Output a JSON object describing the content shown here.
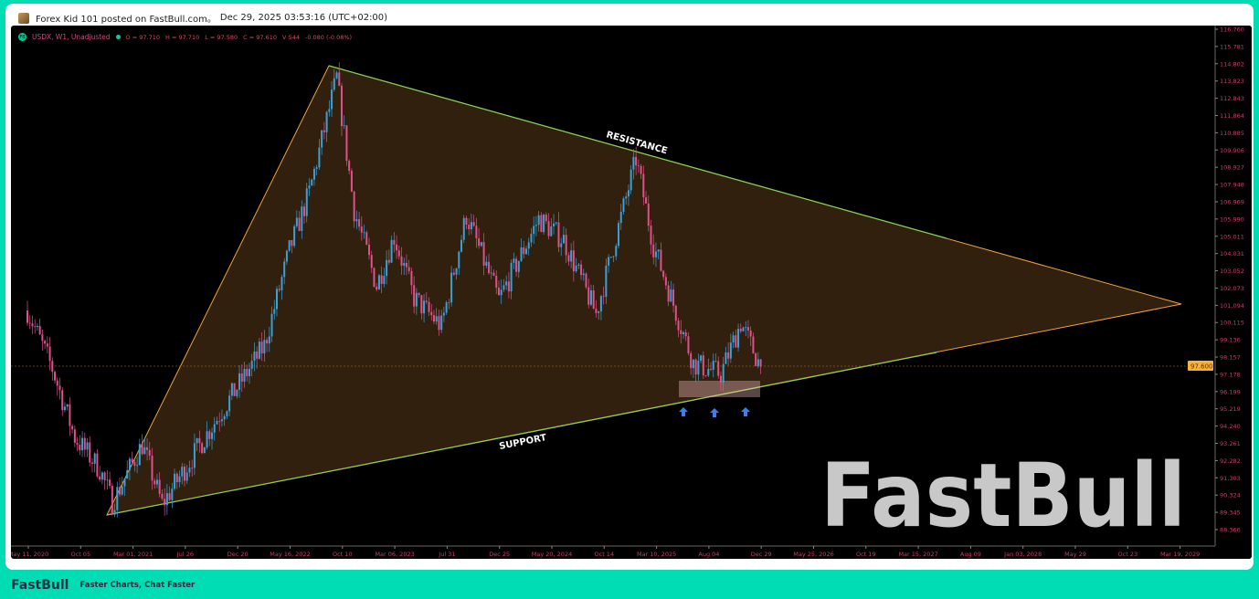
{
  "header": {
    "author_line": "Forex Kid 101 posted on FastBull.com。",
    "timestamp": "Dec 29, 2025 03:53:16 (UTC+02:00)"
  },
  "legend": {
    "badge": "FB",
    "symbol": "USDX, W1, Unadjusted",
    "open": "O = 97.710",
    "high": "H = 97.710",
    "low": "L = 97.580",
    "close": "C = 97.610",
    "volume": "V 544",
    "change": "-0.080 (-0.08%)"
  },
  "chart_data": {
    "type": "candlestick",
    "y_ticks": [
      "116.760",
      "115.781",
      "114.802",
      "113.823",
      "112.843",
      "111.864",
      "110.885",
      "109.906",
      "108.927",
      "107.948",
      "106.969",
      "105.990",
      "105.011",
      "104.031",
      "103.052",
      "102.073",
      "101.094",
      "100.115",
      "99.136",
      "98.157",
      "97.178",
      "96.199",
      "95.219",
      "94.240",
      "93.261",
      "92.282",
      "91.303",
      "90.324",
      "89.345",
      "88.366"
    ],
    "ylim": [
      88.366,
      116.76
    ],
    "x_ticks": [
      "May 11, 2020",
      "Oct 05",
      "Mar 01, 2021",
      "Jul 26",
      "Dec 20",
      "May 16, 2022",
      "Oct 10",
      "Mar 06, 2023",
      "Jul 31",
      "Dec 25",
      "May 20, 2024",
      "Oct 14",
      "Mar 10, 2025",
      "Aug 04",
      "Dec 29",
      "May 25, 2026",
      "Oct 19",
      "Mar 15, 2027",
      "Aug 09",
      "Jan 03, 2028",
      "May 29",
      "Oct 23",
      "Mar 19, 2029"
    ],
    "last_price": "97.600",
    "price_path": [
      [
        "2020-05-11",
        100.8
      ],
      [
        "2020-07-20",
        97.5
      ],
      [
        "2020-09-21",
        93.6
      ],
      [
        "2020-11-30",
        91.8
      ],
      [
        "2021-01-04",
        89.9
      ],
      [
        "2021-03-29",
        93.2
      ],
      [
        "2021-05-24",
        89.8
      ],
      [
        "2021-09-27",
        93.8
      ],
      [
        "2021-12-13",
        96.2
      ],
      [
        "2022-03-07",
        98.8
      ],
      [
        "2022-05-16",
        104.2
      ],
      [
        "2022-07-11",
        107.5
      ],
      [
        "2022-09-26",
        114.0
      ],
      [
        "2022-11-14",
        106.5
      ],
      [
        "2023-01-16",
        102.2
      ],
      [
        "2023-03-06",
        105.0
      ],
      [
        "2023-05-01",
        101.5
      ],
      [
        "2023-07-17",
        99.9
      ],
      [
        "2023-09-25",
        106.2
      ],
      [
        "2023-12-25",
        101.4
      ],
      [
        "2024-04-15",
        106.0
      ],
      [
        "2024-06-24",
        104.8
      ],
      [
        "2024-09-23",
        100.6
      ],
      [
        "2025-01-13",
        109.4
      ],
      [
        "2025-03-03",
        104.5
      ],
      [
        "2025-06-23",
        97.8
      ],
      [
        "2025-09-08",
        97.2
      ],
      [
        "2025-11-03",
        100.1
      ],
      [
        "2025-12-29",
        97.61
      ]
    ],
    "annotations": {
      "resistance": "RESISTANCE",
      "support": "SUPPORT"
    },
    "colors": {
      "up": "#3aa0d8",
      "down": "#e0508a",
      "triangle": "#f0a040",
      "support_line": "#8bd04a",
      "accent": "#00dcb4"
    }
  },
  "watermark": "FastBull",
  "footer": {
    "logo": "FastBull",
    "tagline": "Faster Charts, Chat Faster"
  }
}
